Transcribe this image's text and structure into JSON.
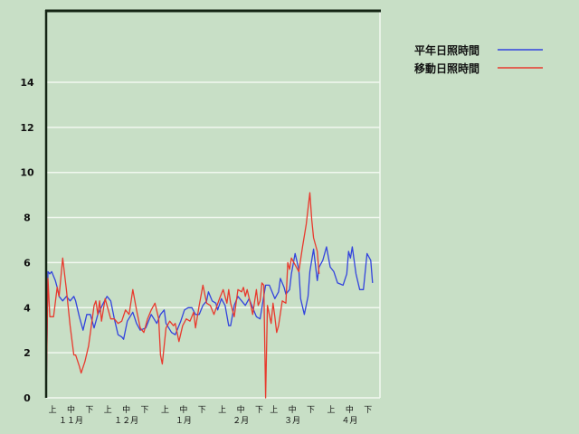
{
  "chart_data": {
    "type": "line",
    "title": "",
    "xlabel": "",
    "ylabel": "",
    "ylim": [
      0,
      17
    ],
    "yticks": [
      "0",
      "2",
      "4",
      "6",
      "8",
      "10",
      "12",
      "14"
    ],
    "grid": true,
    "legend_position": "top-right",
    "x_period_labels": [
      "上",
      "中",
      "下"
    ],
    "x_month_labels": [
      "１１月",
      "１２月",
      "１月",
      "２月",
      "３月",
      "４月"
    ],
    "x_months": [
      11,
      12,
      1,
      2,
      3,
      4
    ],
    "series": [
      {
        "name": "平年日照時間",
        "color": "#3344dd",
        "points": [
          [
            "11/01",
            0
          ],
          [
            "11/02",
            5.6
          ],
          [
            "11/03",
            5.5
          ],
          [
            "11/04",
            5.6
          ],
          [
            "11/06",
            5.2
          ],
          [
            "11/07",
            4.9
          ],
          [
            "11/08",
            4.5
          ],
          [
            "11/10",
            4.3
          ],
          [
            "11/12",
            4.5
          ],
          [
            "11/14",
            4.3
          ],
          [
            "11/16",
            4.5
          ],
          [
            "11/17",
            4.3
          ],
          [
            "11/19",
            3.6
          ],
          [
            "11/21",
            3.0
          ],
          [
            "11/23",
            3.7
          ],
          [
            "11/25",
            3.7
          ],
          [
            "11/27",
            3.1
          ],
          [
            "11/29",
            3.7
          ],
          [
            "12/02",
            4.2
          ],
          [
            "12/04",
            4.5
          ],
          [
            "12/06",
            4.3
          ],
          [
            "12/08",
            3.5
          ],
          [
            "12/10",
            2.8
          ],
          [
            "12/12",
            2.7
          ],
          [
            "12/13",
            2.6
          ],
          [
            "12/15",
            3.4
          ],
          [
            "12/18",
            3.8
          ],
          [
            "12/20",
            3.3
          ],
          [
            "12/22",
            3.0
          ],
          [
            "12/25",
            3.1
          ],
          [
            "12/28",
            3.7
          ],
          [
            "12/31",
            3.3
          ],
          [
            "1/02",
            3.7
          ],
          [
            "1/04",
            3.9
          ],
          [
            "1/05",
            3.3
          ],
          [
            "1/08",
            2.9
          ],
          [
            "1/10",
            2.8
          ],
          [
            "1/13",
            3.4
          ],
          [
            "1/15",
            3.9
          ],
          [
            "1/17",
            4.0
          ],
          [
            "1/19",
            4.0
          ],
          [
            "1/21",
            3.7
          ],
          [
            "1/23",
            3.7
          ],
          [
            "1/25",
            4.1
          ],
          [
            "1/27",
            4.3
          ],
          [
            "1/28",
            4.7
          ],
          [
            "1/30",
            4.3
          ],
          [
            "2/01",
            4.2
          ],
          [
            "2/02",
            3.9
          ],
          [
            "2/04",
            4.4
          ],
          [
            "2/06",
            4.1
          ],
          [
            "2/08",
            3.2
          ],
          [
            "2/09",
            3.2
          ],
          [
            "2/11",
            4.1
          ],
          [
            "2/13",
            4.5
          ],
          [
            "2/15",
            4.3
          ],
          [
            "2/17",
            4.1
          ],
          [
            "2/19",
            4.4
          ],
          [
            "2/21",
            4.0
          ],
          [
            "2/23",
            3.6
          ],
          [
            "2/25",
            3.5
          ],
          [
            "2/26",
            4.0
          ],
          [
            "2/28",
            5.0
          ],
          [
            "3/02",
            5.0
          ],
          [
            "3/05",
            4.4
          ],
          [
            "3/07",
            4.7
          ],
          [
            "3/08",
            5.3
          ],
          [
            "3/10",
            4.9
          ],
          [
            "3/11",
            4.6
          ],
          [
            "3/13",
            4.8
          ],
          [
            "3/14",
            5.5
          ],
          [
            "3/16",
            6.4
          ],
          [
            "3/18",
            5.7
          ],
          [
            "3/19",
            4.4
          ],
          [
            "3/21",
            3.7
          ],
          [
            "3/23",
            4.5
          ],
          [
            "3/24",
            5.6
          ],
          [
            "3/26",
            6.6
          ],
          [
            "3/28",
            5.2
          ],
          [
            "3/29",
            5.8
          ],
          [
            "3/31",
            6.1
          ],
          [
            "4/02",
            6.7
          ],
          [
            "4/04",
            5.8
          ],
          [
            "4/06",
            5.6
          ],
          [
            "4/08",
            5.1
          ],
          [
            "4/11",
            5.0
          ],
          [
            "4/13",
            5.5
          ],
          [
            "4/14",
            6.5
          ],
          [
            "4/15",
            6.2
          ],
          [
            "4/16",
            6.7
          ],
          [
            "4/18",
            5.5
          ],
          [
            "4/20",
            4.8
          ],
          [
            "4/22",
            4.8
          ],
          [
            "4/24",
            6.4
          ],
          [
            "4/26",
            6.1
          ],
          [
            "4/27",
            5.1
          ]
        ]
      },
      {
        "name": "移動日照時間",
        "color": "#e83a2e",
        "points": [
          [
            "11/01",
            0
          ],
          [
            "11/02",
            5.3
          ],
          [
            "11/03",
            3.6
          ],
          [
            "11/05",
            3.6
          ],
          [
            "11/07",
            4.9
          ],
          [
            "11/08",
            4.5
          ],
          [
            "11/10",
            6.2
          ],
          [
            "11/12",
            4.8
          ],
          [
            "11/14",
            3.2
          ],
          [
            "11/16",
            1.9
          ],
          [
            "11/17",
            1.9
          ],
          [
            "11/19",
            1.4
          ],
          [
            "11/20",
            1.1
          ],
          [
            "11/22",
            1.6
          ],
          [
            "11/24",
            2.3
          ],
          [
            "11/27",
            4.1
          ],
          [
            "11/28",
            4.3
          ],
          [
            "11/29",
            3.7
          ],
          [
            "11/30",
            4.3
          ],
          [
            "12/01",
            3.4
          ],
          [
            "12/03",
            4.4
          ],
          [
            "12/06",
            3.5
          ],
          [
            "12/08",
            3.5
          ],
          [
            "12/10",
            3.3
          ],
          [
            "12/12",
            3.4
          ],
          [
            "12/14",
            3.9
          ],
          [
            "12/16",
            3.7
          ],
          [
            "12/18",
            4.8
          ],
          [
            "12/20",
            3.9
          ],
          [
            "12/22",
            3.1
          ],
          [
            "12/24",
            2.9
          ],
          [
            "12/26",
            3.5
          ],
          [
            "12/28",
            3.9
          ],
          [
            "12/30",
            4.2
          ],
          [
            "1/01",
            3.5
          ],
          [
            "1/02",
            1.9
          ],
          [
            "1/03",
            1.5
          ],
          [
            "1/05",
            3.1
          ],
          [
            "1/07",
            3.4
          ],
          [
            "1/09",
            3.2
          ],
          [
            "1/10",
            3.3
          ],
          [
            "1/12",
            2.5
          ],
          [
            "1/14",
            3.2
          ],
          [
            "1/16",
            3.5
          ],
          [
            "1/18",
            3.4
          ],
          [
            "1/20",
            3.8
          ],
          [
            "1/21",
            3.1
          ],
          [
            "1/23",
            4.1
          ],
          [
            "1/25",
            5.0
          ],
          [
            "1/27",
            4.2
          ],
          [
            "1/29",
            4.1
          ],
          [
            "1/31",
            3.7
          ],
          [
            "2/03",
            4.4
          ],
          [
            "2/05",
            4.8
          ],
          [
            "2/07",
            4.2
          ],
          [
            "2/08",
            4.8
          ],
          [
            "2/09",
            4.2
          ],
          [
            "2/11",
            3.6
          ],
          [
            "2/13",
            4.8
          ],
          [
            "2/15",
            4.7
          ],
          [
            "2/16",
            4.9
          ],
          [
            "2/17",
            4.5
          ],
          [
            "2/18",
            4.8
          ],
          [
            "2/20",
            4.1
          ],
          [
            "2/21",
            3.7
          ],
          [
            "2/23",
            4.8
          ],
          [
            "2/24",
            4.1
          ],
          [
            "2/25",
            4.3
          ],
          [
            "2/26",
            5.1
          ],
          [
            "2/27",
            5.0
          ],
          [
            "2/28",
            0
          ],
          [
            "3/01",
            4.1
          ],
          [
            "3/03",
            3.3
          ],
          [
            "3/04",
            4.2
          ],
          [
            "3/05",
            3.6
          ],
          [
            "3/06",
            2.9
          ],
          [
            "3/07",
            3.2
          ],
          [
            "3/09",
            4.3
          ],
          [
            "3/11",
            4.2
          ],
          [
            "3/12",
            6.0
          ],
          [
            "3/13",
            5.7
          ],
          [
            "3/14",
            6.2
          ],
          [
            "3/16",
            5.9
          ],
          [
            "3/18",
            5.6
          ],
          [
            "3/20",
            6.7
          ],
          [
            "3/22",
            7.7
          ],
          [
            "3/24",
            9.1
          ],
          [
            "3/25",
            7.9
          ],
          [
            "3/26",
            7.1
          ],
          [
            "3/28",
            6.5
          ],
          [
            "3/29",
            5.5
          ]
        ]
      }
    ]
  }
}
